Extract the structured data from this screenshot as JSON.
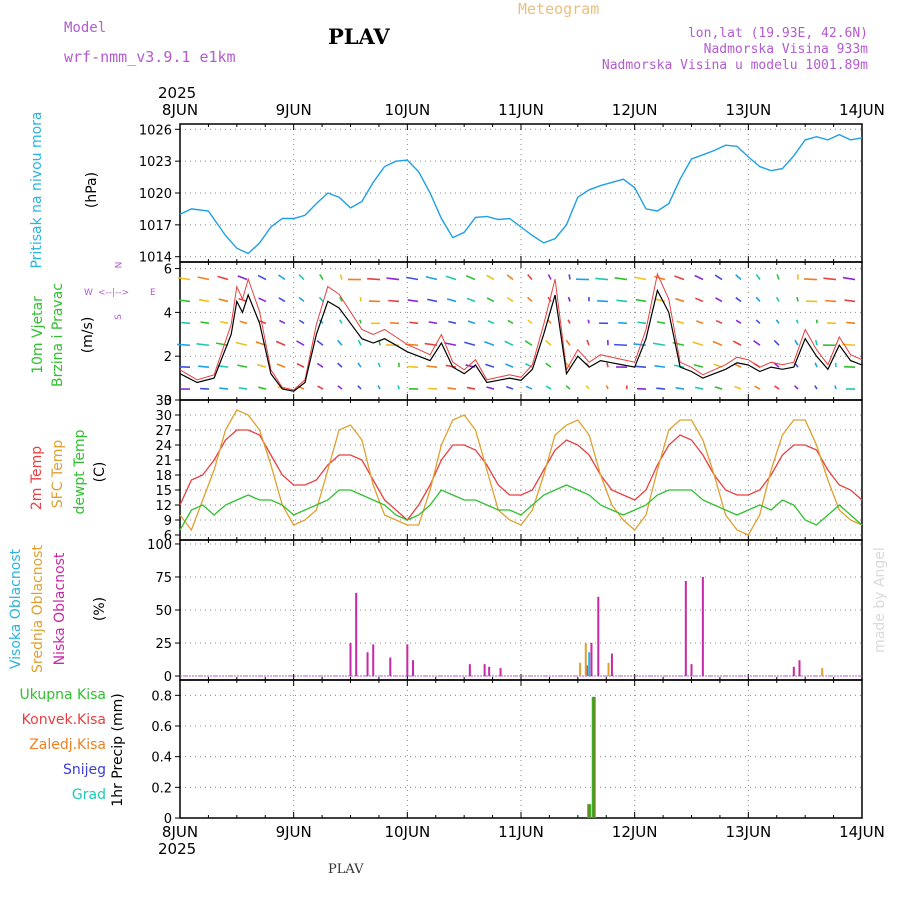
{
  "header": {
    "model_label": "Model",
    "model_name": "wrf-nmm_v3.9.1 e1km",
    "station": "PLAV",
    "meteogram": "Meteogram",
    "lonlat": "lon,lat (19.93E, 42.6N)",
    "elevation": "Nadmorska Visina 933m",
    "model_elevation": "Nadmorska Visina u modelu 1001.89m",
    "year_top": "2025",
    "year_bottom": "2025",
    "footer_station": "PLAV",
    "watermark": "made by Angel"
  },
  "colors": {
    "pressure": "#1ea0e6",
    "temp2m": "#e84040",
    "sfc": "#e0a030",
    "dew": "#30c030",
    "high_cloud": "#28b4e0",
    "mid_cloud": "#e0a030",
    "low_cloud": "#c828a8",
    "total_precip": "#30c030",
    "conv_precip": "#e84040",
    "frozen_precip": "#f08020",
    "snow": "#3c3cd8",
    "graupel": "#20c8b4",
    "wind_label": "#30c030",
    "compass": "#b45ad2"
  },
  "chart_data": [
    {
      "type": "line",
      "panel": "pressure",
      "ylabel_main": "Pritisak na nivou mora",
      "ylabel_unit": "(hPa)",
      "x_ticks": [
        "8JUN",
        "9JUN",
        "10JUN",
        "11JUN",
        "12JUN",
        "13JUN",
        "14JUN"
      ],
      "ylim": [
        1013.5,
        1026.5
      ],
      "yticks": [
        "1014",
        "1017",
        "1020",
        "1023",
        "1026"
      ],
      "series": [
        {
          "x": [
            0,
            0.1,
            0.25,
            0.4,
            0.5,
            0.6,
            0.7,
            0.8,
            0.9,
            1.0,
            1.1,
            1.2,
            1.3,
            1.4,
            1.5,
            1.6,
            1.7,
            1.8,
            1.9,
            2.0,
            2.1,
            2.2,
            2.3,
            2.4,
            2.5,
            2.6,
            2.7,
            2.8,
            2.9,
            3.0,
            3.1,
            3.2,
            3.3,
            3.4,
            3.5,
            3.6,
            3.7,
            3.8,
            3.9,
            4.0,
            4.1,
            4.2,
            4.3,
            4.4,
            4.5,
            4.6,
            4.7,
            4.8,
            4.9,
            5.0,
            5.1,
            5.2,
            5.3,
            5.4,
            5.5,
            5.6,
            5.7,
            5.8,
            5.9,
            6.0
          ],
          "values": [
            1018.0,
            1018.5,
            1018.3,
            1016.0,
            1014.8,
            1014.3,
            1015.3,
            1016.8,
            1017.6,
            1017.6,
            1017.9,
            1019.0,
            1020.0,
            1019.6,
            1018.6,
            1019.2,
            1021.0,
            1022.5,
            1023.0,
            1023.1,
            1022.0,
            1020.0,
            1017.6,
            1015.8,
            1016.3,
            1017.7,
            1017.8,
            1017.5,
            1017.6,
            1016.8,
            1016.0,
            1015.3,
            1015.7,
            1017.0,
            1019.6,
            1020.3,
            1020.7,
            1021.0,
            1021.3,
            1020.5,
            1018.5,
            1018.3,
            1019.0,
            1021.3,
            1023.2,
            1023.6,
            1024.0,
            1024.5,
            1024.4,
            1023.4,
            1022.5,
            1022.1,
            1022.3,
            1023.5,
            1025.0,
            1025.3,
            1025.0,
            1025.5,
            1025.0,
            1025.2
          ]
        }
      ]
    },
    {
      "type": "line",
      "panel": "wind",
      "ylabel_label1": "10m Vjetar",
      "ylabel_label2": "Brzina i Pravac",
      "ylabel_unit": "(m/s)",
      "compass": {
        "n": "N",
        "s": "S",
        "w": "W",
        "e": "E",
        "arrow": "<--|-->"
      },
      "ylim": [
        0,
        6.3
      ],
      "yticks": [
        "0",
        "2",
        "4",
        "6"
      ],
      "series": [
        {
          "name": "speed",
          "x": [
            0,
            0.15,
            0.3,
            0.45,
            0.5,
            0.55,
            0.6,
            0.7,
            0.8,
            0.9,
            1.0,
            1.1,
            1.2,
            1.3,
            1.4,
            1.5,
            1.6,
            1.7,
            1.8,
            1.9,
            2.0,
            2.1,
            2.2,
            2.3,
            2.4,
            2.5,
            2.6,
            2.7,
            2.8,
            2.9,
            3.0,
            3.1,
            3.2,
            3.3,
            3.4,
            3.5,
            3.6,
            3.7,
            3.8,
            3.9,
            4.0,
            4.1,
            4.2,
            4.3,
            4.4,
            4.5,
            4.6,
            4.7,
            4.8,
            4.9,
            5.0,
            5.1,
            5.2,
            5.3,
            5.4,
            5.5,
            5.6,
            5.7,
            5.8,
            5.9,
            6.0
          ],
          "values": [
            1.2,
            0.8,
            1.0,
            3.0,
            4.5,
            4.0,
            4.8,
            3.5,
            1.2,
            0.5,
            0.4,
            0.8,
            3.0,
            4.5,
            4.2,
            3.5,
            2.8,
            2.6,
            2.8,
            2.5,
            2.2,
            2.0,
            1.8,
            2.6,
            1.5,
            1.2,
            1.6,
            0.8,
            0.9,
            1.0,
            0.9,
            1.4,
            3.0,
            4.8,
            1.2,
            2.0,
            1.5,
            1.8,
            1.7,
            1.6,
            1.5,
            2.8,
            5.0,
            4.0,
            1.5,
            1.3,
            1.0,
            1.2,
            1.4,
            1.7,
            1.6,
            1.3,
            1.5,
            1.4,
            1.5,
            2.8,
            2.0,
            1.4,
            2.5,
            1.8,
            1.6
          ]
        }
      ]
    },
    {
      "type": "line",
      "panel": "temperature",
      "ylabel_label1": "2m Temp",
      "ylabel_label2": "SFC Temp",
      "ylabel_label3": "dewpt Temp",
      "ylabel_unit": "(C)",
      "ylim": [
        5,
        33
      ],
      "yticks": [
        "6",
        "9",
        "12",
        "15",
        "18",
        "21",
        "24",
        "27",
        "30",
        "33"
      ],
      "x": [
        0,
        0.1,
        0.2,
        0.3,
        0.4,
        0.5,
        0.6,
        0.7,
        0.8,
        0.9,
        1.0,
        1.1,
        1.2,
        1.3,
        1.4,
        1.5,
        1.6,
        1.7,
        1.8,
        1.9,
        2.0,
        2.1,
        2.2,
        2.3,
        2.4,
        2.5,
        2.6,
        2.7,
        2.8,
        2.9,
        3.0,
        3.1,
        3.2,
        3.3,
        3.4,
        3.5,
        3.6,
        3.7,
        3.8,
        3.9,
        4.0,
        4.1,
        4.2,
        4.3,
        4.4,
        4.5,
        4.6,
        4.7,
        4.8,
        4.9,
        5.0,
        5.1,
        5.2,
        5.3,
        5.4,
        5.5,
        5.6,
        5.7,
        5.8,
        5.9,
        6.0
      ],
      "series": [
        {
          "name": "2m",
          "values": [
            12,
            17,
            18,
            21,
            25,
            27,
            27,
            26,
            22,
            18,
            16,
            16,
            17,
            20,
            22,
            22,
            21,
            17,
            13,
            11,
            9,
            12,
            16,
            21,
            24,
            24,
            23,
            20,
            16,
            14,
            14,
            15,
            19,
            23,
            25,
            24,
            22,
            18,
            15,
            14,
            13,
            15,
            20,
            24,
            26,
            25,
            22,
            18,
            15,
            14,
            14,
            15,
            18,
            22,
            24,
            24,
            23,
            19,
            16,
            15,
            13
          ]
        },
        {
          "name": "sfc",
          "values": [
            10,
            7,
            13,
            19,
            27,
            31,
            30,
            27,
            20,
            12,
            8,
            9,
            11,
            19,
            27,
            28,
            25,
            16,
            10,
            9,
            8,
            8,
            15,
            24,
            29,
            30,
            27,
            19,
            11,
            9,
            8,
            11,
            18,
            26,
            28,
            29,
            26,
            18,
            12,
            9,
            7,
            10,
            19,
            27,
            29,
            29,
            25,
            18,
            10,
            7,
            6,
            10,
            19,
            26,
            29,
            29,
            24,
            17,
            11,
            9,
            8
          ]
        },
        {
          "name": "dewpt",
          "values": [
            7,
            11,
            12,
            10,
            12,
            13,
            14,
            13,
            13,
            12,
            10,
            11,
            12,
            13,
            15,
            15,
            14,
            13,
            12,
            10,
            9,
            10,
            12,
            15,
            14,
            13,
            13,
            12,
            11,
            11,
            10,
            12,
            14,
            15,
            16,
            15,
            14,
            12,
            11,
            10,
            11,
            12,
            14,
            15,
            15,
            15,
            13,
            12,
            11,
            10,
            11,
            12,
            11,
            13,
            12,
            9,
            8,
            10,
            12,
            10,
            8
          ]
        }
      ]
    },
    {
      "type": "bar",
      "panel": "cloud",
      "ylabel_label1": "Visoka Oblacnost",
      "ylabel_label2": "Srednja Oblacnost",
      "ylabel_label3": "Niska Oblacnost",
      "ylabel_unit": "(%)",
      "ylim": [
        -3,
        103
      ],
      "yticks": [
        "0",
        "25",
        "50",
        "75",
        "100"
      ],
      "series": [
        {
          "name": "low",
          "x": [
            1.5,
            1.55,
            1.65,
            1.7,
            1.85,
            2.0,
            2.05,
            2.55,
            2.68,
            2.72,
            2.82,
            3.58,
            3.62,
            3.68,
            3.8,
            4.45,
            4.5,
            4.6,
            5.4,
            5.45
          ],
          "values": [
            25,
            63,
            18,
            24,
            14,
            24,
            12,
            9,
            9,
            7,
            6,
            8,
            25,
            60,
            17,
            72,
            9,
            75,
            7,
            12
          ]
        },
        {
          "name": "mid",
          "x": [
            3.52,
            3.57,
            3.77,
            5.65
          ],
          "values": [
            10,
            25,
            10,
            6
          ]
        },
        {
          "name": "high",
          "x": [
            3.6
          ],
          "values": [
            18
          ]
        }
      ]
    },
    {
      "type": "bar",
      "panel": "precip",
      "ylabel_label1": "Ukupna Kisa",
      "ylabel_label2": "Konvek.Kisa",
      "ylabel_label3": "Zaledj.Kisa",
      "ylabel_label4": "Snijeg",
      "ylabel_label5": "Grad",
      "ylabel_unit": "1hr Precip (mm)",
      "ylim": [
        0,
        0.9
      ],
      "yticks": [
        "0",
        "0.2",
        "0.4",
        "0.6",
        "0.8"
      ],
      "series": [
        {
          "name": "total",
          "x": [
            3.6,
            3.64
          ],
          "values": [
            0.09,
            0.79
          ]
        },
        {
          "name": "conv",
          "x": [
            3.6,
            3.64
          ],
          "values": [
            0.09,
            0.79
          ]
        }
      ]
    }
  ]
}
